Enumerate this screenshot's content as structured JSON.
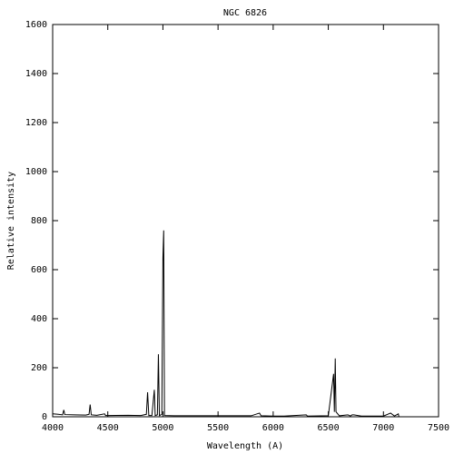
{
  "chart_data": {
    "type": "line",
    "title": "NGC 6826",
    "x_label": "Wavelength (A)",
    "y_label": "Relative intensity",
    "x": [
      4000,
      4050,
      4090,
      4101,
      4110,
      4200,
      4300,
      4330,
      4340,
      4350,
      4400,
      4471,
      4480,
      4500,
      4686,
      4800,
      4850,
      4861,
      4872,
      4900,
      4922,
      4930,
      4950,
      4959,
      4968,
      4990,
      5000,
      5007,
      5014,
      5100,
      5500,
      5800,
      5876,
      5890,
      6000,
      6100,
      6300,
      6310,
      6500,
      6548,
      6555,
      6563,
      6570,
      6600,
      6678,
      6700,
      6716,
      6731,
      6800,
      7000,
      7065,
      7100,
      7135,
      7140
    ],
    "series": [
      {
        "name": "NGC 6826",
        "color": "#000000",
        "values": [
          12,
          10,
          8,
          28,
          9,
          8,
          7,
          10,
          50,
          8,
          6,
          12,
          5,
          5,
          6,
          5,
          10,
          100,
          5,
          5,
          110,
          5,
          8,
          255,
          5,
          10,
          650,
          760,
          5,
          4,
          4,
          4,
          15,
          4,
          3,
          3,
          8,
          3,
          4,
          175,
          20,
          238,
          20,
          4,
          8,
          3,
          8,
          8,
          3,
          3,
          15,
          3,
          12,
          0
        ]
      }
    ],
    "xlim": [
      4000,
      7500
    ],
    "xticks": [
      4000,
      4500,
      5000,
      5500,
      6000,
      6500,
      7000,
      7500
    ],
    "ylim": [
      0,
      1600
    ],
    "yticks": [
      0,
      200,
      400,
      600,
      800,
      1000,
      1200,
      1400,
      1600
    ]
  }
}
